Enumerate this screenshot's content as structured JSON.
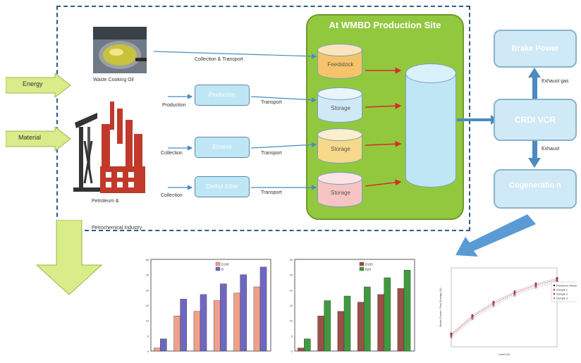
{
  "site_title": "At WMBD Production Site",
  "left_inputs": {
    "energy": "Energy",
    "material": "Material"
  },
  "sources": {
    "waste_oil": "Waste Cooking Oil",
    "petro_line1": "Petroleum &",
    "petro_line2": "Petrochemical Industry"
  },
  "flow_labels": {
    "collection_transport": "Collection & Transport",
    "production": "Production",
    "transport1": "Transport",
    "collection2": "Collection",
    "transport2": "Transport",
    "collection3": "Collection",
    "transport3": "Transport"
  },
  "process_boxes": {
    "box1": "Production",
    "box2": "Ethanol",
    "box3": "Diethyl Ether"
  },
  "tanks": {
    "feedstock": "Feedstock",
    "storage1": "Storage",
    "storage2": "Storage",
    "storage3": "Storage"
  },
  "engine": {
    "brake_power": "Brake Power",
    "engine_label": "CRDI VCR",
    "cogeneration": "Cogeneratio n",
    "exhaust_top": "Exhaust gas",
    "exhaust_bottom": "Exhaust"
  },
  "colors": {
    "site_green": "#92c83e",
    "tank_blue": "#bfe6f4",
    "arrow_green": "#d8ec8a",
    "bar_salmon": "#f0a08a",
    "bar_purple": "#6e67c2",
    "bar_brown": "#9a5148",
    "bar_green": "#3f9a3e",
    "line_red": "#d92b2b"
  },
  "chart_data": [
    {
      "type": "bar",
      "title": "",
      "xlabel": "",
      "ylabel": "",
      "ylim": [
        0,
        30
      ],
      "yticks": [
        "30",
        "25",
        "20",
        "15",
        "10",
        "5",
        "0"
      ],
      "legend": [
        "D100",
        "B"
      ],
      "series": [
        {
          "name": "D100",
          "values": [
            1,
            11.5,
            13,
            16.5,
            19,
            21
          ]
        },
        {
          "name": "B",
          "values": [
            4,
            17,
            18.5,
            22,
            25,
            27.5
          ]
        }
      ]
    },
    {
      "type": "bar",
      "title": "",
      "xlabel": "",
      "ylabel": "",
      "ylim": [
        0,
        30
      ],
      "yticks": [
        "30",
        "25",
        "20",
        "15",
        "10",
        "5",
        "0"
      ],
      "legend": [
        "D100",
        "B20"
      ],
      "series": [
        {
          "name": "D100",
          "values": [
            1,
            11.5,
            13,
            16,
            18.5,
            20.5
          ]
        },
        {
          "name": "B20",
          "values": [
            4,
            16.5,
            18,
            21,
            24,
            26.5
          ]
        }
      ]
    },
    {
      "type": "line",
      "title": "",
      "xlabel": "Load (%)",
      "ylabel": "Brake Power / Fuel Energy (%)",
      "ylim": [
        0,
        30
      ],
      "legend": [
        "Petroleum Diesel",
        "Sample 1",
        "Sample 2",
        "Sample 3"
      ],
      "x": [
        0,
        20,
        40,
        60,
        80,
        100
      ],
      "series": [
        {
          "name": "Petroleum Diesel",
          "values": [
            5,
            12,
            17,
            21,
            24,
            26
          ]
        },
        {
          "name": "Sample 1",
          "values": [
            4.5,
            11.5,
            16.5,
            20.5,
            23.5,
            25.5
          ]
        },
        {
          "name": "Sample 2",
          "values": [
            4,
            11,
            16,
            20,
            23,
            25
          ]
        },
        {
          "name": "Sample 3",
          "values": [
            3.5,
            10.5,
            15.5,
            19.5,
            22.5,
            24.5
          ]
        }
      ]
    }
  ]
}
